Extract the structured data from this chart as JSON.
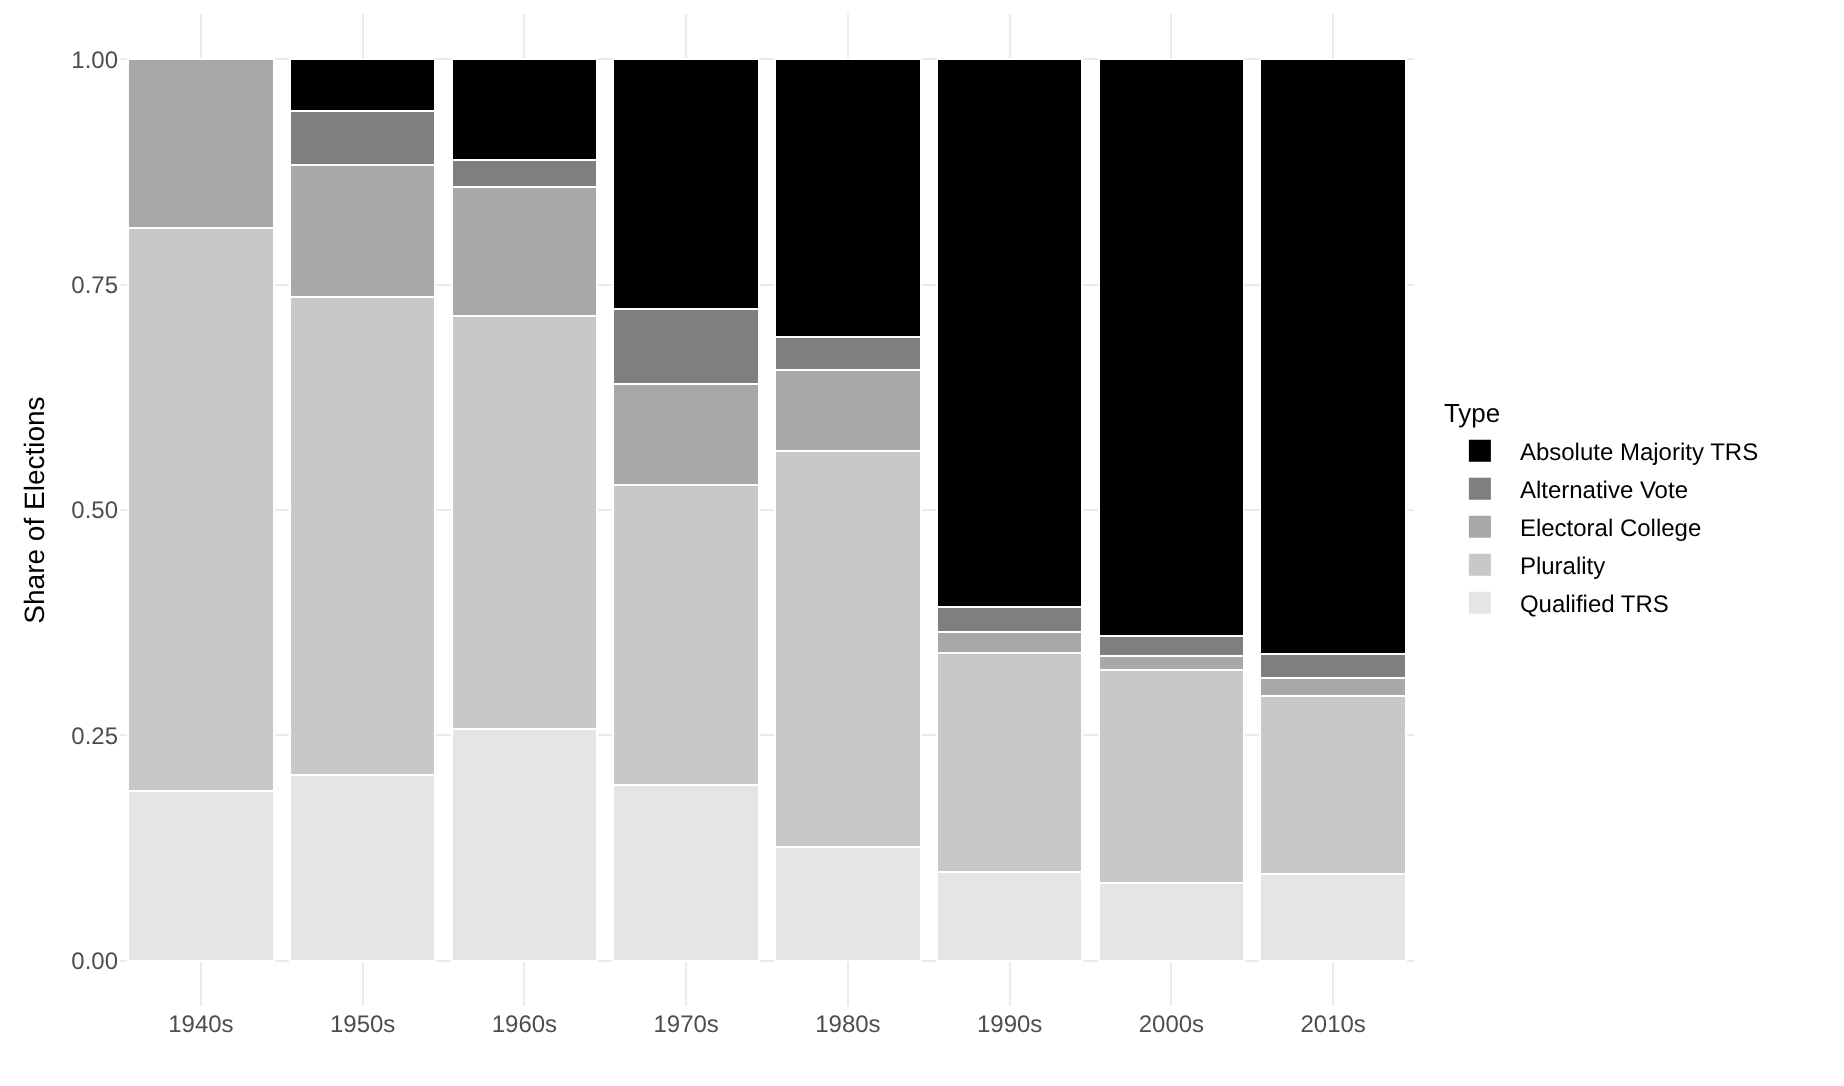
{
  "chart_data": {
    "type": "bar",
    "stacked": true,
    "ylabel": "Share of Elections",
    "legend_title": "Type",
    "legend": "right",
    "grid": true,
    "categories": [
      "1940s",
      "1950s",
      "1960s",
      "1970s",
      "1980s",
      "1990s",
      "2000s",
      "2010s"
    ],
    "series": [
      {
        "name": "Qualified TRS",
        "color": "#e5e5e5",
        "values": [
          0.188,
          0.206,
          0.257,
          0.195,
          0.126,
          0.099,
          0.086,
          0.096
        ]
      },
      {
        "name": "Plurality",
        "color": "#c8c8c8",
        "values": [
          0.625,
          0.53,
          0.458,
          0.333,
          0.439,
          0.242,
          0.237,
          0.198
        ]
      },
      {
        "name": "Electoral College",
        "color": "#a8a8a8",
        "values": [
          0.187,
          0.147,
          0.143,
          0.112,
          0.09,
          0.024,
          0.015,
          0.02
        ]
      },
      {
        "name": "Alternative Vote",
        "color": "#7f7f7f",
        "values": [
          null,
          0.06,
          0.03,
          0.083,
          0.037,
          0.027,
          0.022,
          0.026
        ]
      },
      {
        "name": "Absolute Majority TRS",
        "color": "#000000",
        "values": [
          null,
          0.057,
          0.112,
          0.277,
          0.308,
          0.608,
          0.64,
          0.66
        ]
      }
    ],
    "ylim": [
      -0.05,
      1.05
    ],
    "yticks": [
      {
        "value": 0,
        "label": "0.00"
      },
      {
        "value": 0.25,
        "label": "0.25"
      },
      {
        "value": 0.5,
        "label": "0.50"
      },
      {
        "value": 0.75,
        "label": "0.75"
      },
      {
        "value": 1,
        "label": "1.00"
      }
    ]
  }
}
